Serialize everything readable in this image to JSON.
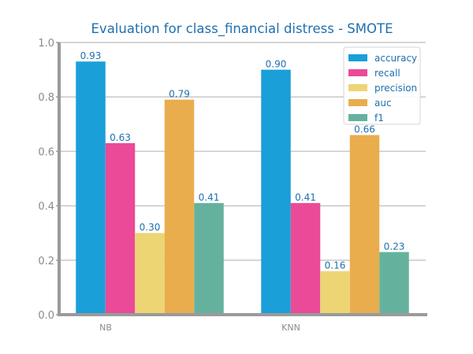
{
  "chart_data": {
    "type": "bar",
    "title": "Evaluation for class_financial distress - SMOTE",
    "xlabel": "",
    "ylabel": "",
    "categories": [
      "NB",
      "KNN"
    ],
    "series": [
      {
        "name": "accuracy",
        "color": "#1a9fd8",
        "values": [
          0.93,
          0.9
        ],
        "labels": [
          "0.93",
          "0.90"
        ]
      },
      {
        "name": "recall",
        "color": "#ea4a98",
        "values": [
          0.63,
          0.41
        ],
        "labels": [
          "0.63",
          "0.41"
        ]
      },
      {
        "name": "precision",
        "color": "#edd574",
        "values": [
          0.3,
          0.16
        ],
        "labels": [
          "0.30",
          "0.16"
        ]
      },
      {
        "name": "auc",
        "color": "#e9ad4e",
        "values": [
          0.79,
          0.66
        ],
        "labels": [
          "0.79",
          "0.66"
        ]
      },
      {
        "name": "f1",
        "color": "#64b29e",
        "values": [
          0.41,
          0.23
        ],
        "labels": [
          "0.41",
          "0.23"
        ]
      }
    ],
    "ylim": [
      0,
      1.0
    ],
    "yticks": [
      0.0,
      0.2,
      0.4,
      0.6,
      0.8,
      1.0
    ],
    "ytick_labels": [
      "0.0",
      "0.2",
      "0.4",
      "0.6",
      "0.8",
      "1.0"
    ],
    "grid": "horizontal",
    "legend_position": "top-right"
  }
}
